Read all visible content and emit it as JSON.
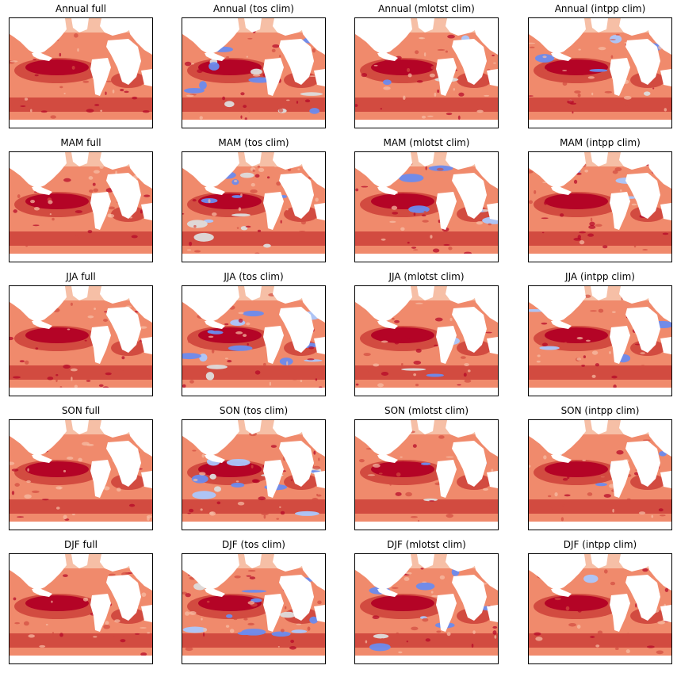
{
  "figure": {
    "rows": [
      "Annual",
      "MAM",
      "JJA",
      "SON",
      "DJF"
    ],
    "columns": [
      "full",
      "tos clim",
      "mlotst clim",
      "intpp clim"
    ],
    "titles": [
      [
        "Annual full",
        "Annual (tos clim)",
        "Annual (mlotst clim)",
        "Annual (intpp clim)"
      ],
      [
        "MAM full",
        "MAM (tos clim)",
        "MAM (mlotst clim)",
        "MAM (intpp clim)"
      ],
      [
        "JJA full",
        "JJA (tos clim)",
        "JJA (mlotst clim)",
        "JJA (intpp clim)"
      ],
      [
        "SON full",
        "SON (tos clim)",
        "SON (mlotst clim)",
        "SON (intpp clim)"
      ],
      [
        "DJF full",
        "DJF (tos clim)",
        "DJF (mlotst clim)",
        "DJF (intpp clim)"
      ]
    ],
    "colormap": "coolwarm",
    "colors": {
      "strong_red": "#b40426",
      "red": "#d24b40",
      "light_red": "#f08a6c",
      "salmon": "#f6bfa6",
      "neutral": "#dddcdc",
      "light_blue": "#aac7fd",
      "blue": "#6a8bef",
      "land": "#ffffff",
      "frame": "#000000"
    },
    "blue_levels": [
      [
        0.0,
        0.55,
        0.15,
        0.2
      ],
      [
        0.0,
        0.5,
        0.2,
        0.15
      ],
      [
        0.0,
        0.6,
        0.15,
        0.15
      ],
      [
        0.0,
        0.5,
        0.15,
        0.15
      ],
      [
        0.0,
        0.6,
        0.35,
        0.05
      ]
    ]
  }
}
